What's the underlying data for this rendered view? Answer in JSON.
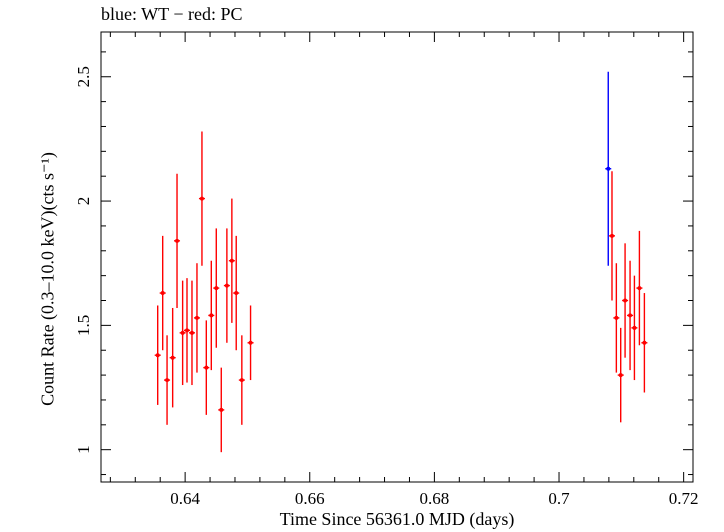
{
  "chart_data": {
    "type": "scatter",
    "title": "blue: WT − red: PC",
    "xlabel": "Time Since 56361.0 MJD (days)",
    "ylabel": "Count Rate (0.3–10.0 keV)(cts s⁻¹)",
    "xlim": [
      0.6265,
      0.7215
    ],
    "ylim": [
      0.87,
      2.68
    ],
    "xticks": [
      0.64,
      0.66,
      0.68,
      0.7,
      0.72
    ],
    "xtick_labels": [
      "0.64",
      "0.66",
      "0.68",
      "0.7",
      "0.72"
    ],
    "yticks": [
      1,
      1.5,
      2,
      2.5
    ],
    "ytick_labels": [
      "1",
      "1.5",
      "2",
      "2.5"
    ],
    "grid": false,
    "series": [
      {
        "name": "WT",
        "color": "#0000ff",
        "points": [
          {
            "x": 0.7079,
            "y": 2.13,
            "err": 0.39
          }
        ]
      },
      {
        "name": "PC",
        "color": "#ff0000",
        "points": [
          {
            "x": 0.6356,
            "y": 1.38,
            "err": 0.2
          },
          {
            "x": 0.6364,
            "y": 1.63,
            "err": 0.23
          },
          {
            "x": 0.6371,
            "y": 1.28,
            "err": 0.18
          },
          {
            "x": 0.638,
            "y": 1.37,
            "err": 0.2
          },
          {
            "x": 0.6387,
            "y": 1.84,
            "err": 0.27
          },
          {
            "x": 0.6396,
            "y": 1.47,
            "err": 0.21
          },
          {
            "x": 0.6403,
            "y": 1.48,
            "err": 0.21
          },
          {
            "x": 0.6411,
            "y": 1.47,
            "err": 0.21
          },
          {
            "x": 0.6419,
            "y": 1.53,
            "err": 0.22
          },
          {
            "x": 0.6427,
            "y": 2.01,
            "err": 0.27
          },
          {
            "x": 0.6434,
            "y": 1.33,
            "err": 0.19
          },
          {
            "x": 0.6442,
            "y": 1.54,
            "err": 0.22
          },
          {
            "x": 0.645,
            "y": 1.65,
            "err": 0.24
          },
          {
            "x": 0.6458,
            "y": 1.16,
            "err": 0.17
          },
          {
            "x": 0.6467,
            "y": 1.66,
            "err": 0.23
          },
          {
            "x": 0.6475,
            "y": 1.76,
            "err": 0.25
          },
          {
            "x": 0.6482,
            "y": 1.63,
            "err": 0.23
          },
          {
            "x": 0.6491,
            "y": 1.28,
            "err": 0.18
          },
          {
            "x": 0.6505,
            "y": 1.43,
            "err": 0.15
          },
          {
            "x": 0.7085,
            "y": 1.86,
            "err": 0.26
          },
          {
            "x": 0.7092,
            "y": 1.53,
            "err": 0.22
          },
          {
            "x": 0.7099,
            "y": 1.3,
            "err": 0.19
          },
          {
            "x": 0.7106,
            "y": 1.6,
            "err": 0.23
          },
          {
            "x": 0.7114,
            "y": 1.54,
            "err": 0.22
          },
          {
            "x": 0.7121,
            "y": 1.49,
            "err": 0.21
          },
          {
            "x": 0.7129,
            "y": 1.65,
            "err": 0.23
          },
          {
            "x": 0.7137,
            "y": 1.43,
            "err": 0.2
          }
        ]
      }
    ]
  }
}
